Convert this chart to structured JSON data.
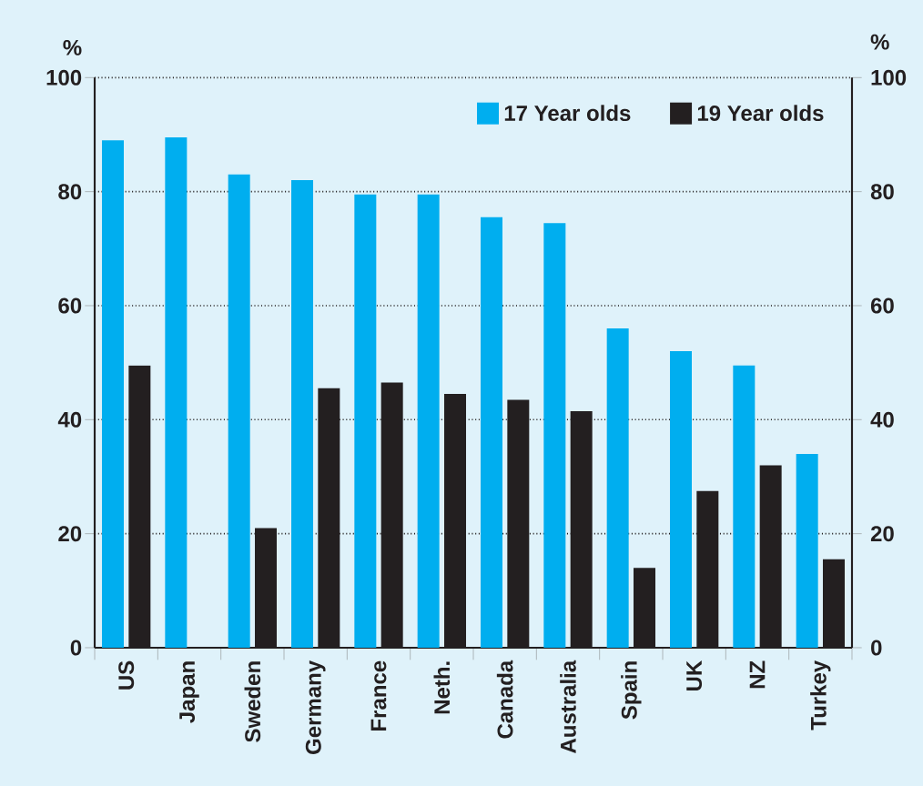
{
  "chart_data": {
    "type": "bar",
    "categories": [
      "US",
      "Japan",
      "Sweden",
      "Germany",
      "France",
      "Neth.",
      "Canada",
      "Australia",
      "Spain",
      "UK",
      "NZ",
      "Turkey"
    ],
    "series": [
      {
        "name": "17 Year olds",
        "color": "#00aeef",
        "values": [
          89,
          89.5,
          83,
          82,
          79.5,
          79.5,
          75.5,
          74.5,
          56,
          52,
          49.5,
          34
        ]
      },
      {
        "name": "19 Year olds",
        "color": "#231f20",
        "values": [
          49.5,
          null,
          21,
          45.5,
          46.5,
          44.5,
          43.5,
          41.5,
          14,
          27.5,
          32,
          15.5
        ]
      }
    ],
    "ylabel": "%",
    "y2label": "%",
    "ylim": [
      0,
      100
    ],
    "yticks": [
      0,
      20,
      40,
      60,
      80,
      100
    ],
    "y2lim": [
      0,
      100
    ],
    "y2ticks": [
      0,
      20,
      40,
      60,
      80,
      100
    ],
    "grid": "y",
    "legend": "top right"
  }
}
